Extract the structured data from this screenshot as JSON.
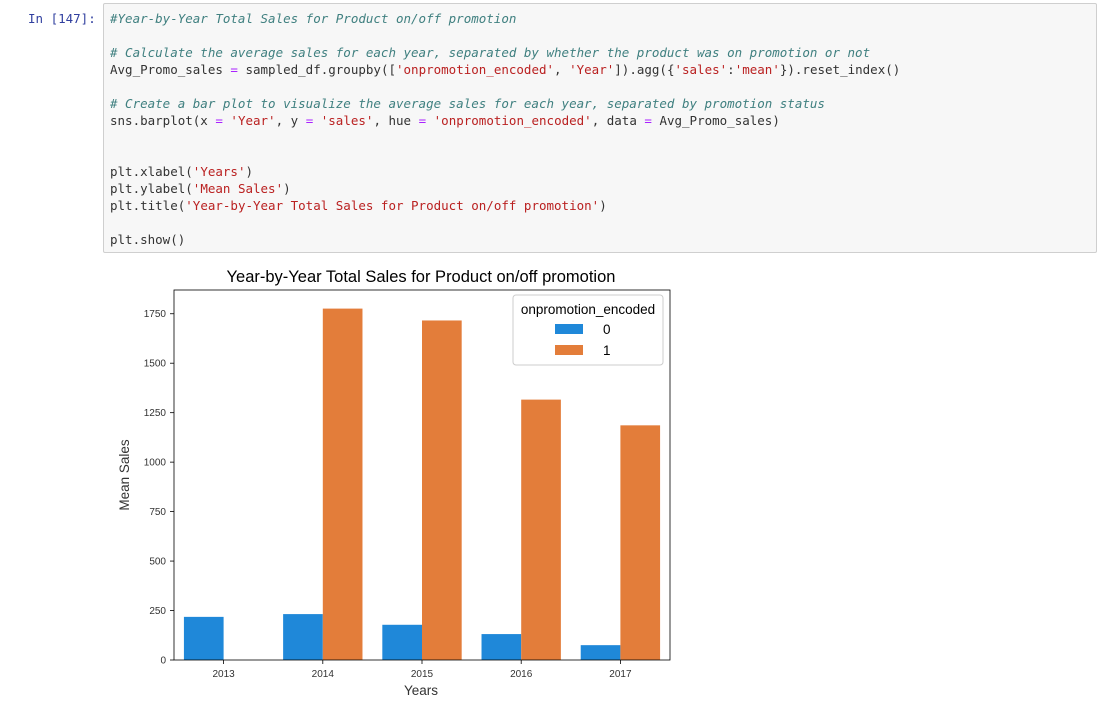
{
  "cell": {
    "prompt": "In [147]:",
    "code_lines": [
      [
        {
          "t": "#Year-by-Year Total Sales for Product on/off promotion",
          "c": "cm"
        }
      ],
      [],
      [
        {
          "t": "# Calculate the average sales for each year, separated by whether the product was on promotion or not",
          "c": "cm"
        }
      ],
      [
        {
          "t": "Avg_Promo_sales "
        },
        {
          "t": "=",
          "c": "op"
        },
        {
          "t": " sampled_df.groupby(["
        },
        {
          "t": "'onpromotion_encoded'",
          "c": "st"
        },
        {
          "t": ", "
        },
        {
          "t": "'Year'",
          "c": "st"
        },
        {
          "t": "]).agg({"
        },
        {
          "t": "'sales'",
          "c": "st"
        },
        {
          "t": ":"
        },
        {
          "t": "'mean'",
          "c": "st"
        },
        {
          "t": "}).reset_index()"
        }
      ],
      [],
      [
        {
          "t": "# Create a bar plot to visualize the average sales for each year, separated by promotion status",
          "c": "cm"
        }
      ],
      [
        {
          "t": "sns.barplot(x "
        },
        {
          "t": "=",
          "c": "op"
        },
        {
          "t": " "
        },
        {
          "t": "'Year'",
          "c": "st"
        },
        {
          "t": ", y "
        },
        {
          "t": "=",
          "c": "op"
        },
        {
          "t": " "
        },
        {
          "t": "'sales'",
          "c": "st"
        },
        {
          "t": ", hue "
        },
        {
          "t": "=",
          "c": "op"
        },
        {
          "t": " "
        },
        {
          "t": "'onpromotion_encoded'",
          "c": "st"
        },
        {
          "t": ", data "
        },
        {
          "t": "=",
          "c": "op"
        },
        {
          "t": " Avg_Promo_sales)"
        }
      ],
      [],
      [],
      [
        {
          "t": "plt.xlabel("
        },
        {
          "t": "'Years'",
          "c": "st"
        },
        {
          "t": ")"
        }
      ],
      [
        {
          "t": "plt.ylabel("
        },
        {
          "t": "'Mean Sales'",
          "c": "st"
        },
        {
          "t": ")"
        }
      ],
      [
        {
          "t": "plt.title("
        },
        {
          "t": "'Year-by-Year Total Sales for Product on/off promotion'",
          "c": "st"
        },
        {
          "t": ")"
        }
      ],
      [],
      [
        {
          "t": "plt.show()"
        }
      ]
    ]
  },
  "chart_data": {
    "type": "bar",
    "title": "Year-by-Year Total Sales for Product on/off promotion",
    "xlabel": "Years",
    "ylabel": "Mean Sales",
    "categories": [
      "2013",
      "2014",
      "2015",
      "2016",
      "2017"
    ],
    "yticks": [
      0,
      250,
      500,
      750,
      1000,
      1250,
      1500,
      1750
    ],
    "ylim": [
      0,
      1870
    ],
    "legend": {
      "title": "onpromotion_encoded",
      "position": "top-right"
    },
    "series": [
      {
        "name": "0",
        "color": "#1f88d9",
        "values": [
          218,
          232,
          178,
          131,
          75
        ]
      },
      {
        "name": "1",
        "color": "#e37d3a",
        "values": [
          null,
          1776,
          1716,
          1316,
          1186
        ]
      }
    ]
  }
}
